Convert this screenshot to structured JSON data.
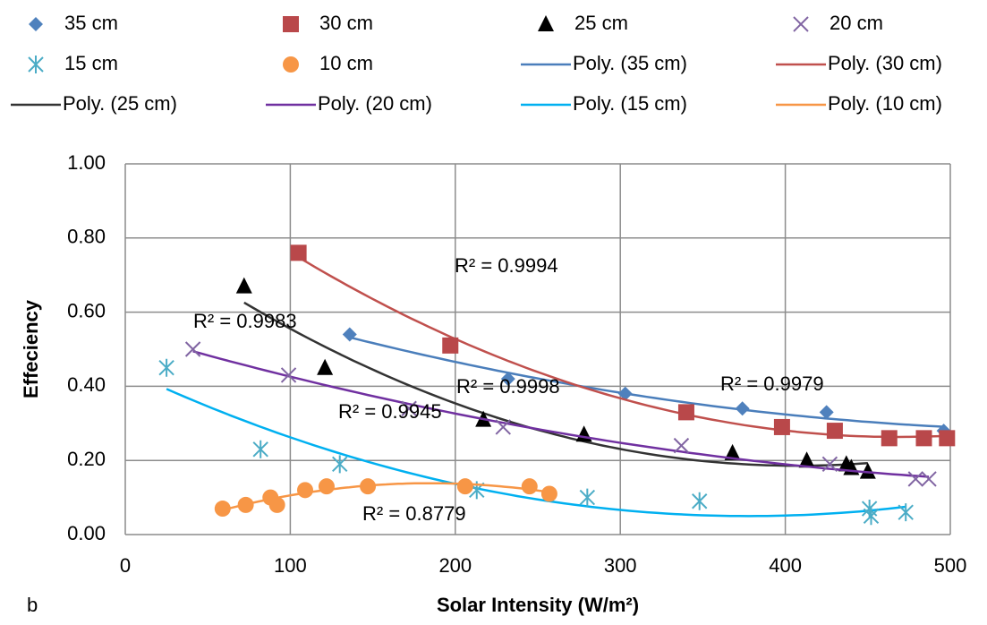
{
  "chart_data": {
    "type": "scatter",
    "panel_label": "b",
    "x_label": "Solar Intensity (W/m²)",
    "y_label": "Effeciency",
    "xlim": [
      0,
      500
    ],
    "xticks": [
      0,
      100,
      200,
      300,
      400,
      500
    ],
    "ylim": [
      0,
      1
    ],
    "yticks": [
      {
        "value": 0,
        "label": "0.00"
      },
      {
        "value": 0.2,
        "label": "0.20"
      },
      {
        "value": 0.4,
        "label": "0.40"
      },
      {
        "value": 0.6,
        "label": "0.60"
      },
      {
        "value": 0.8,
        "label": "0.80"
      },
      {
        "value": 1,
        "label": "1.00"
      }
    ],
    "grid": true,
    "series": [
      {
        "name": "35 cm",
        "color": "#4f81bd",
        "marker": "diamond",
        "x": [
          136,
          232,
          303,
          374,
          425,
          496
        ],
        "values": [
          0.54,
          0.42,
          0.38,
          0.34,
          0.33,
          0.28
        ],
        "trendline": {
          "name": "Poly. (35 cm)",
          "color": "#4a7ebb",
          "r2_label": "R² = 0.9979"
        }
      },
      {
        "name": "30 cm",
        "color": "#b9484a",
        "marker": "square",
        "x": [
          105,
          197,
          340,
          398,
          430,
          463,
          484,
          498
        ],
        "values": [
          0.76,
          0.51,
          0.33,
          0.29,
          0.28,
          0.26,
          0.26,
          0.26
        ],
        "trendline": {
          "name": "Poly. (30 cm)",
          "color": "#c0504d",
          "r2_label": "R² = 0.9994"
        }
      },
      {
        "name": "25 cm",
        "color": "#000000",
        "marker": "triangle",
        "x": [
          72,
          121,
          217,
          278,
          368,
          413,
          437,
          440,
          450
        ],
        "values": [
          0.67,
          0.45,
          0.31,
          0.27,
          0.22,
          0.2,
          0.19,
          0.18,
          0.17
        ],
        "trendline": {
          "name": "Poly. (25 cm)",
          "color": "#333333",
          "r2_label": "R² = 0.9998"
        }
      },
      {
        "name": "20 cm",
        "color": "#8064a2",
        "marker": "x",
        "x": [
          41,
          99,
          172,
          229,
          337,
          427,
          479,
          487
        ],
        "values": [
          0.5,
          0.43,
          0.34,
          0.29,
          0.24,
          0.19,
          0.15,
          0.15
        ],
        "trendline": {
          "name": "Poly. (20 cm)",
          "color": "#7030a0",
          "r2_label": "R² = 0.9983"
        }
      },
      {
        "name": "15 cm",
        "color": "#4bacc6",
        "marker": "asterisk",
        "x": [
          25,
          82,
          130,
          213,
          280,
          348,
          451,
          452,
          473
        ],
        "values": [
          0.45,
          0.23,
          0.19,
          0.12,
          0.1,
          0.09,
          0.07,
          0.05,
          0.06
        ],
        "trendline": {
          "name": "Poly. (15 cm)",
          "color": "#00b0f0",
          "r2_label": "R² = 0.9945"
        }
      },
      {
        "name": "10 cm",
        "color": "#f79646",
        "marker": "circle",
        "x": [
          59,
          73,
          88,
          92,
          109,
          122,
          147,
          206,
          245,
          257
        ],
        "values": [
          0.07,
          0.08,
          0.1,
          0.08,
          0.12,
          0.13,
          0.13,
          0.13,
          0.13,
          0.11
        ],
        "trendline": {
          "name": "Poly. (10 cm)",
          "color": "#f79646",
          "r2_label": "R² = 0.8779"
        }
      }
    ]
  }
}
